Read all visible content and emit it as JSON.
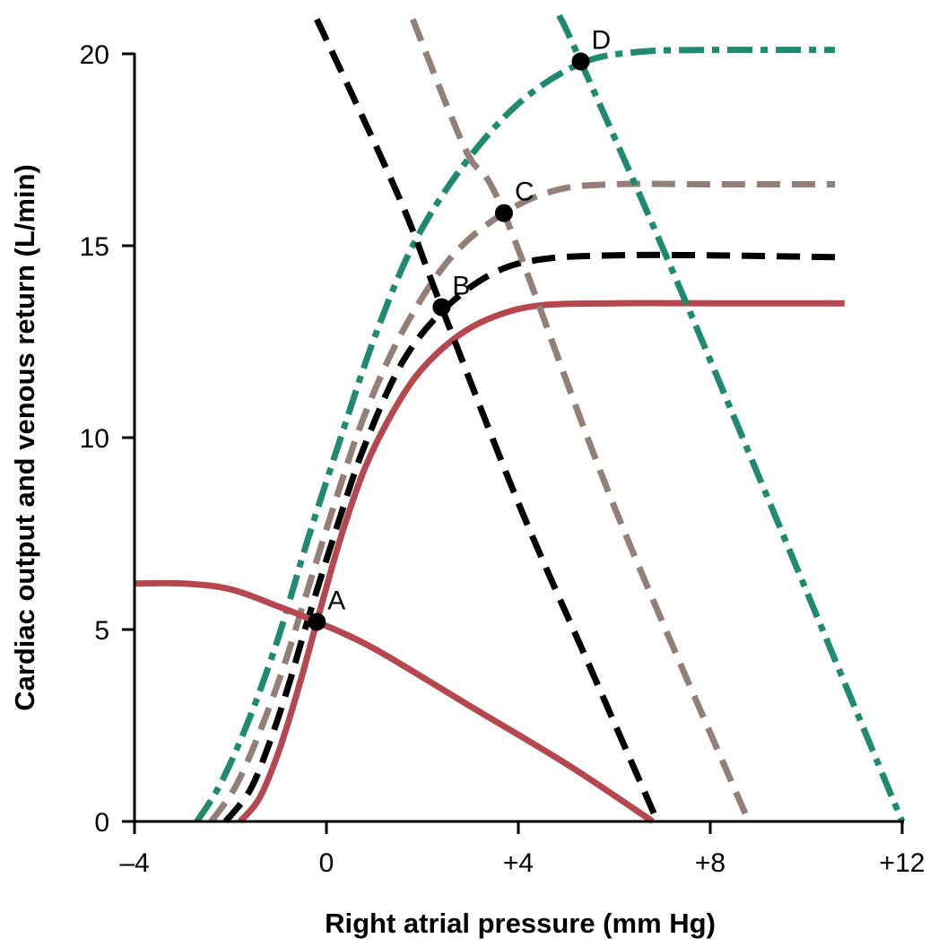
{
  "chart_data": {
    "type": "line",
    "xlabel": "Right atrial pressure (mm Hg)",
    "ylabel": "Cardiac output and venous return (L/min)",
    "xlim": [
      -4,
      12
    ],
    "ylim": [
      0,
      20
    ],
    "x_ticks": [
      {
        "value": -4,
        "label": "–4"
      },
      {
        "value": 0,
        "label": "0"
      },
      {
        "value": 4,
        "label": "+4"
      },
      {
        "value": 8,
        "label": "+8"
      },
      {
        "value": 12,
        "label": "+12"
      }
    ],
    "y_ticks": [
      {
        "value": 0,
        "label": "0"
      },
      {
        "value": 5,
        "label": "5"
      },
      {
        "value": 10,
        "label": "10"
      },
      {
        "value": 15,
        "label": "15"
      },
      {
        "value": 20,
        "label": "20"
      }
    ],
    "grid": false,
    "legend": "none",
    "colors": {
      "red": "#b5474f",
      "black": "#000000",
      "taupe": "#937f77",
      "teal": "#1f8a70"
    },
    "series": [
      {
        "kind": "cardiac-output",
        "color_key": "red",
        "style": "solid",
        "points": [
          [
            -1.8,
            0
          ],
          [
            -1.4,
            0.6
          ],
          [
            -1.0,
            1.8
          ],
          [
            -0.6,
            3.4
          ],
          [
            -0.2,
            5.2
          ],
          [
            0.3,
            7.4
          ],
          [
            0.8,
            9.2
          ],
          [
            1.4,
            10.7
          ],
          [
            2.0,
            11.8
          ],
          [
            2.8,
            12.7
          ],
          [
            3.6,
            13.2
          ],
          [
            4.5,
            13.45
          ],
          [
            6,
            13.5
          ],
          [
            8,
            13.5
          ],
          [
            10.8,
            13.5
          ]
        ]
      },
      {
        "kind": "cardiac-output",
        "color_key": "black",
        "style": "dashed",
        "points": [
          [
            -2.1,
            0
          ],
          [
            -1.6,
            0.8
          ],
          [
            -1.2,
            2.0
          ],
          [
            -0.8,
            3.5
          ],
          [
            -0.4,
            5.2
          ],
          [
            0.2,
            7.6
          ],
          [
            0.8,
            9.8
          ],
          [
            1.6,
            12.0
          ],
          [
            2.5,
            13.4
          ],
          [
            3.5,
            14.3
          ],
          [
            4.5,
            14.65
          ],
          [
            6,
            14.75
          ],
          [
            8,
            14.75
          ],
          [
            10.6,
            14.7
          ]
        ]
      },
      {
        "kind": "cardiac-output",
        "color_key": "taupe",
        "style": "dashed",
        "points": [
          [
            -2.4,
            0
          ],
          [
            -1.9,
            0.9
          ],
          [
            -1.4,
            2.3
          ],
          [
            -0.9,
            4.0
          ],
          [
            -0.4,
            6.0
          ],
          [
            0.2,
            8.4
          ],
          [
            0.8,
            10.6
          ],
          [
            1.6,
            12.8
          ],
          [
            2.6,
            14.7
          ],
          [
            3.7,
            15.85
          ],
          [
            4.8,
            16.45
          ],
          [
            6,
            16.6
          ],
          [
            8,
            16.6
          ],
          [
            10.6,
            16.6
          ]
        ]
      },
      {
        "kind": "cardiac-output",
        "color_key": "teal",
        "style": "dash-dot",
        "points": [
          [
            -2.7,
            0
          ],
          [
            -2.2,
            1.0
          ],
          [
            -1.6,
            2.7
          ],
          [
            -1.0,
            4.8
          ],
          [
            -0.4,
            7.3
          ],
          [
            0.3,
            10.0
          ],
          [
            1.0,
            12.6
          ],
          [
            1.8,
            15.0
          ],
          [
            2.8,
            17.0
          ],
          [
            4.0,
            18.7
          ],
          [
            5.3,
            19.75
          ],
          [
            6.5,
            20.05
          ],
          [
            8,
            20.1
          ],
          [
            10.6,
            20.1
          ]
        ]
      },
      {
        "kind": "venous-return",
        "color_key": "red",
        "style": "solid",
        "points": [
          [
            -4,
            6.2
          ],
          [
            -3,
            6.2
          ],
          [
            -2,
            6.05
          ],
          [
            -1,
            5.6
          ],
          [
            -0.2,
            5.2
          ],
          [
            1,
            4.5
          ],
          [
            3,
            3.0
          ],
          [
            5,
            1.5
          ],
          [
            6.8,
            0
          ]
        ]
      },
      {
        "kind": "venous-return",
        "color_key": "black",
        "style": "dashed",
        "points": [
          [
            -0.2,
            20.9
          ],
          [
            1.5,
            16.3
          ],
          [
            2.4,
            13.4
          ],
          [
            4,
            8.3
          ],
          [
            5.5,
            4.0
          ],
          [
            6.9,
            0
          ]
        ]
      },
      {
        "kind": "venous-return",
        "color_key": "taupe",
        "style": "dashed",
        "points": [
          [
            1.8,
            20.9
          ],
          [
            2.9,
            17.5
          ],
          [
            3.7,
            15.85
          ],
          [
            6,
            8.2
          ],
          [
            8.8,
            0
          ]
        ]
      },
      {
        "kind": "venous-return",
        "color_key": "teal",
        "style": "dash-dot",
        "points": [
          [
            4.85,
            21.0
          ],
          [
            5.3,
            19.8
          ],
          [
            7.5,
            13.5
          ],
          [
            12,
            0
          ]
        ]
      }
    ],
    "annotations": [
      {
        "label": "A",
        "x": -0.2,
        "y": 5.2
      },
      {
        "label": "B",
        "x": 2.4,
        "y": 13.4
      },
      {
        "label": "C",
        "x": 3.7,
        "y": 15.85
      },
      {
        "label": "D",
        "x": 5.3,
        "y": 19.8
      }
    ]
  }
}
